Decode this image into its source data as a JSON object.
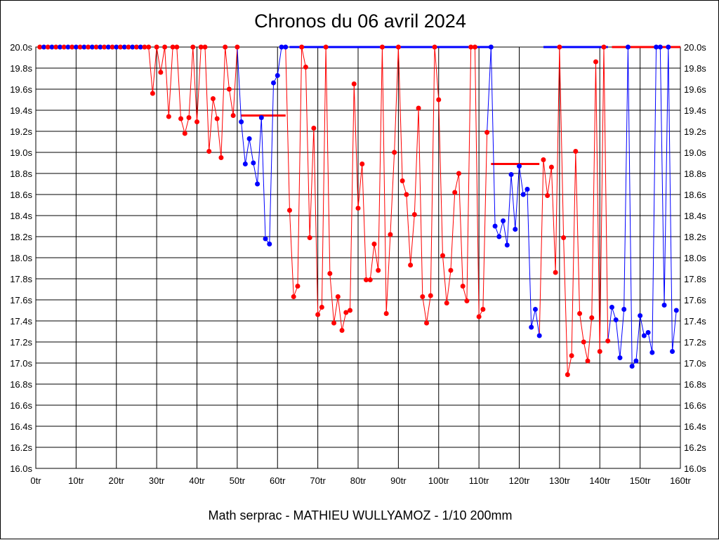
{
  "chart_data": {
    "type": "line",
    "title": "Chronos du 06 avril 2024",
    "footer": "Math serprac - MATHIEU WULLYAMOZ - 1/10 200mm",
    "xlabel": "",
    "ylabel": "",
    "xlim": [
      0,
      160
    ],
    "ylim": [
      16.0,
      20.0
    ],
    "x_ticks": [
      0,
      10,
      20,
      30,
      40,
      50,
      60,
      70,
      80,
      90,
      100,
      110,
      120,
      130,
      140,
      150,
      160
    ],
    "x_tick_labels": [
      "0tr",
      "10tr",
      "20tr",
      "30tr",
      "40tr",
      "50tr",
      "60tr",
      "70tr",
      "80tr",
      "90tr",
      "100tr",
      "110tr",
      "120tr",
      "130tr",
      "140tr",
      "150tr",
      "160tr"
    ],
    "y_ticks": [
      16.0,
      16.2,
      16.4,
      16.6,
      16.8,
      17.0,
      17.2,
      17.4,
      17.6,
      17.8,
      18.0,
      18.2,
      18.4,
      18.6,
      18.8,
      19.0,
      19.2,
      19.4,
      19.6,
      19.8,
      20.0
    ],
    "y_tick_labels": [
      "16.0s",
      "16.2s",
      "16.4s",
      "16.6s",
      "16.8s",
      "17.0s",
      "17.2s",
      "17.4s",
      "17.6s",
      "17.8s",
      "18.0s",
      "18.2s",
      "18.4s",
      "18.6s",
      "18.8s",
      "19.0s",
      "19.2s",
      "19.4s",
      "19.6s",
      "19.8s",
      "20.0s"
    ],
    "grid": true,
    "colors": {
      "red": "#ff0000",
      "blue": "#0000ff",
      "grid": "#000000"
    },
    "series": [
      {
        "name": "run1",
        "color": "red",
        "points": [
          [
            1,
            20
          ],
          [
            2,
            20
          ],
          [
            3,
            20
          ],
          [
            4,
            20
          ],
          [
            5,
            20
          ],
          [
            6,
            20
          ],
          [
            7,
            20
          ],
          [
            8,
            20
          ],
          [
            9,
            20
          ],
          [
            10,
            20
          ],
          [
            11,
            20
          ],
          [
            12,
            20
          ],
          [
            13,
            20
          ],
          [
            14,
            20
          ],
          [
            15,
            20
          ],
          [
            16,
            20
          ],
          [
            17,
            20
          ],
          [
            18,
            20
          ],
          [
            19,
            20
          ],
          [
            20,
            20
          ],
          [
            21,
            20
          ],
          [
            22,
            20
          ],
          [
            23,
            20
          ],
          [
            24,
            20
          ],
          [
            25,
            20
          ],
          [
            26,
            20
          ],
          [
            27,
            20
          ],
          [
            28,
            20
          ],
          [
            29,
            19.56
          ],
          [
            30,
            20
          ],
          [
            31,
            19.76
          ],
          [
            32,
            20
          ],
          [
            33,
            19.34
          ],
          [
            34,
            20
          ],
          [
            35,
            20
          ],
          [
            36,
            19.32
          ],
          [
            37,
            19.18
          ],
          [
            38,
            19.33
          ],
          [
            39,
            20
          ],
          [
            40,
            19.29
          ],
          [
            41,
            20
          ],
          [
            42,
            20
          ],
          [
            43,
            19.01
          ],
          [
            44,
            19.51
          ],
          [
            45,
            19.32
          ],
          [
            46,
            18.95
          ],
          [
            47,
            20
          ],
          [
            48,
            19.6
          ],
          [
            49,
            19.35
          ],
          [
            50,
            20
          ]
        ]
      },
      {
        "name": "run2",
        "color": "blue",
        "points": [
          [
            51,
            19.29
          ],
          [
            52,
            18.89
          ],
          [
            53,
            19.13
          ],
          [
            54,
            18.9
          ],
          [
            55,
            18.7
          ],
          [
            56,
            19.33
          ],
          [
            57,
            18.18
          ],
          [
            58,
            18.13
          ],
          [
            59,
            19.66
          ],
          [
            60,
            19.73
          ],
          [
            61,
            20
          ],
          [
            62,
            20
          ]
        ]
      },
      {
        "name": "run3",
        "color": "red",
        "points": [
          [
            63,
            18.45
          ],
          [
            64,
            17.63
          ],
          [
            65,
            17.73
          ],
          [
            66,
            20
          ],
          [
            67,
            19.81
          ],
          [
            68,
            18.19
          ],
          [
            69,
            19.23
          ],
          [
            70,
            17.46
          ],
          [
            71,
            17.53
          ],
          [
            72,
            20
          ],
          [
            73,
            17.85
          ],
          [
            74,
            17.38
          ],
          [
            75,
            17.63
          ],
          [
            76,
            17.31
          ],
          [
            77,
            17.48
          ],
          [
            78,
            17.5
          ],
          [
            79,
            19.65
          ],
          [
            80,
            18.47
          ],
          [
            81,
            18.89
          ],
          [
            82,
            17.79
          ],
          [
            83,
            17.79
          ],
          [
            84,
            18.13
          ],
          [
            85,
            17.88
          ],
          [
            86,
            20
          ],
          [
            87,
            17.47
          ],
          [
            88,
            18.22
          ],
          [
            89,
            19.0
          ],
          [
            90,
            20
          ],
          [
            91,
            18.73
          ],
          [
            92,
            18.6
          ],
          [
            93,
            17.93
          ],
          [
            94,
            18.41
          ],
          [
            95,
            19.42
          ],
          [
            96,
            17.63
          ],
          [
            97,
            17.38
          ],
          [
            98,
            17.64
          ],
          [
            99,
            20
          ],
          [
            100,
            19.5
          ],
          [
            101,
            18.02
          ],
          [
            102,
            17.57
          ],
          [
            103,
            17.88
          ],
          [
            104,
            18.62
          ],
          [
            105,
            18.8
          ],
          [
            106,
            17.73
          ],
          [
            107,
            17.59
          ],
          [
            108,
            20
          ],
          [
            109,
            20
          ],
          [
            110,
            17.44
          ],
          [
            111,
            17.51
          ],
          [
            112,
            19.19
          ]
        ]
      },
      {
        "name": "run4",
        "color": "blue",
        "points": [
          [
            113,
            20
          ],
          [
            114,
            18.3
          ],
          [
            115,
            18.2
          ],
          [
            116,
            18.35
          ],
          [
            117,
            18.12
          ],
          [
            118,
            18.79
          ],
          [
            119,
            18.27
          ],
          [
            120,
            18.87
          ],
          [
            121,
            18.6
          ],
          [
            122,
            18.65
          ],
          [
            123,
            17.34
          ],
          [
            124,
            17.51
          ],
          [
            125,
            17.26
          ]
        ]
      },
      {
        "name": "run5",
        "color": "red",
        "points": [
          [
            126,
            18.93
          ],
          [
            127,
            18.59
          ],
          [
            128,
            18.86
          ],
          [
            129,
            17.86
          ],
          [
            130,
            20
          ],
          [
            131,
            18.19
          ],
          [
            132,
            16.89
          ],
          [
            133,
            17.07
          ],
          [
            134,
            19.01
          ],
          [
            135,
            17.47
          ],
          [
            136,
            17.2
          ],
          [
            137,
            17.02
          ],
          [
            138,
            17.43
          ],
          [
            139,
            19.86
          ],
          [
            140,
            17.11
          ],
          [
            141,
            20
          ],
          [
            142,
            17.21
          ]
        ]
      },
      {
        "name": "run6",
        "color": "blue",
        "points": [
          [
            143,
            17.53
          ],
          [
            144,
            17.41
          ],
          [
            145,
            17.05
          ],
          [
            146,
            17.51
          ],
          [
            147,
            20
          ],
          [
            148,
            16.97
          ],
          [
            149,
            17.02
          ],
          [
            150,
            17.45
          ],
          [
            151,
            17.26
          ],
          [
            152,
            17.29
          ],
          [
            153,
            17.1
          ],
          [
            154,
            20
          ],
          [
            155,
            20
          ],
          [
            156,
            17.55
          ],
          [
            157,
            20
          ],
          [
            158,
            17.11
          ],
          [
            159,
            17.5
          ]
        ]
      }
    ],
    "top_dot_alternating_blue": [
      2,
      4,
      6,
      8,
      10,
      12,
      14,
      16,
      18,
      20,
      22,
      24,
      26
    ],
    "reference_lines": [
      {
        "color": "red",
        "value": 19.35,
        "from": 51,
        "to": 62
      },
      {
        "color": "red",
        "value": 18.89,
        "from": 113,
        "to": 125
      }
    ],
    "cap_lines": [
      {
        "color": "blue",
        "value": 20.0,
        "from": 63,
        "to": 113
      },
      {
        "color": "blue",
        "value": 20.0,
        "from": 126,
        "to": 142
      },
      {
        "color": "red",
        "value": 20.0,
        "from": 143,
        "to": 160
      }
    ]
  }
}
